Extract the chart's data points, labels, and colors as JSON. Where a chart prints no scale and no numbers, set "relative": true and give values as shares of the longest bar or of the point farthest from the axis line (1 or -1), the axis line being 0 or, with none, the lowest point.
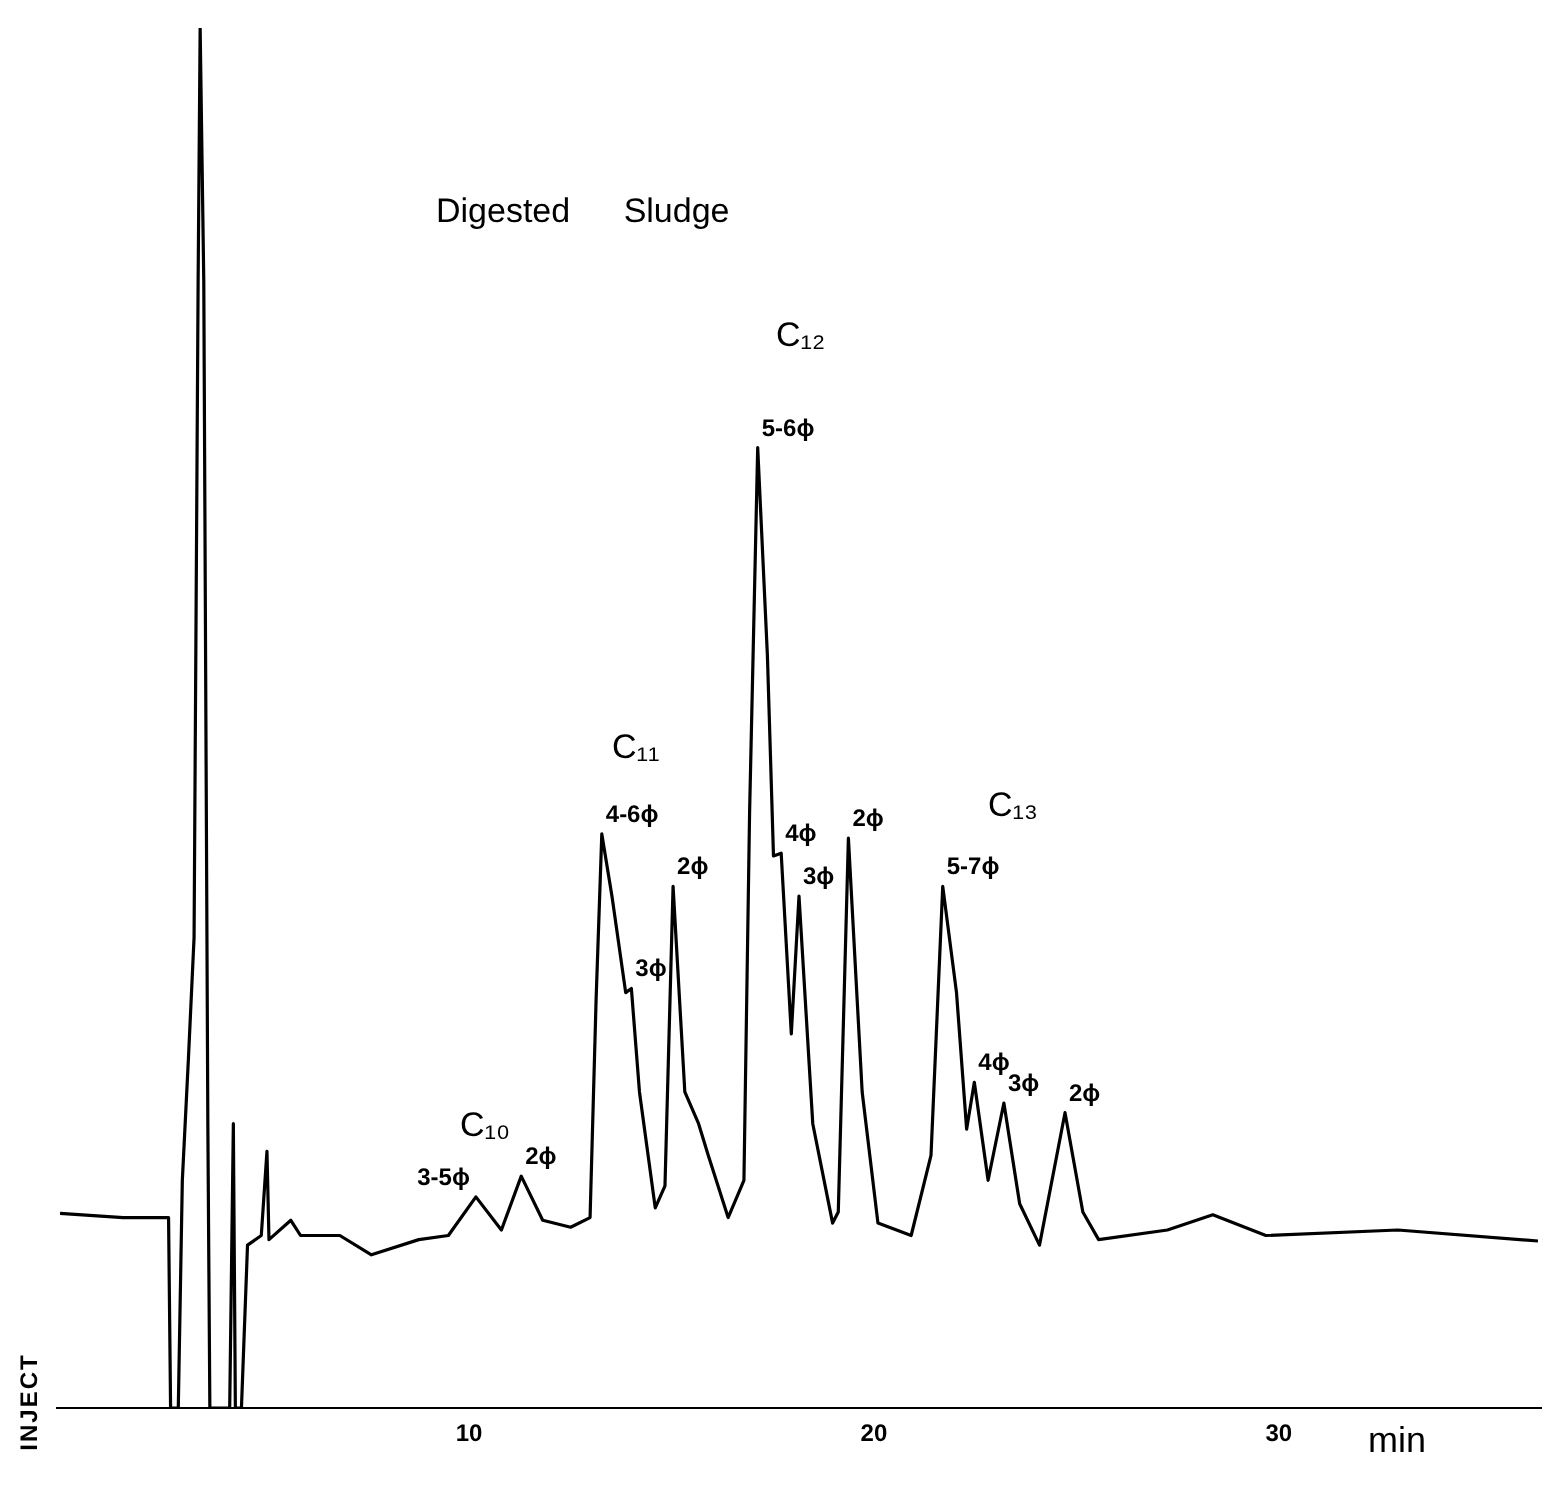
{
  "chart_data": {
    "type": "line",
    "title": "Digested Sludge",
    "xlabel": "min",
    "relative": true,
    "xlim": [
      -0.2,
      36.5
    ],
    "xticks": [
      10,
      20,
      30
    ],
    "x": [
      -0.1,
      1.46,
      2.58,
      2.63,
      2.82,
      2.92,
      3.07,
      3.21,
      3.31,
      3.36,
      3.45,
      3.55,
      3.6,
      4.09,
      4.18,
      4.23,
      4.38,
      4.53,
      4.87,
      5.01,
      5.06,
      5.6,
      5.84,
      6.81,
      7.59,
      8.76,
      9.49,
      10.17,
      10.8,
      11.29,
      11.82,
      12.51,
      12.99,
      13.14,
      13.28,
      13.53,
      13.87,
      14.01,
      14.21,
      14.6,
      14.84,
      15.04,
      15.33,
      15.67,
      15.91,
      16.4,
      16.79,
      16.93,
      17.13,
      17.37,
      17.52,
      17.71,
      17.96,
      18.15,
      18.49,
      18.98,
      19.12,
      19.37,
      19.71,
      20.1,
      20.92,
      21.41,
      21.7,
      22.04,
      22.29,
      22.48,
      22.82,
      23.21,
      23.6,
      24.09,
      24.72,
      25.16,
      25.55,
      27.25,
      28.37,
      29.68,
      32.94,
      36.4
    ],
    "series": [
      {
        "color": "#000000",
        "values": [
          0.141,
          0.138,
          0.138,
          0,
          0,
          0.165,
          0.253,
          0.341,
          0.816,
          1,
          0.816,
          0.206,
          0,
          0,
          0.206,
          0,
          0,
          0.118,
          0.125,
          0.186,
          0.122,
          0.136,
          0.125,
          0.125,
          0.111,
          0.122,
          0.125,
          0.153,
          0.129,
          0.168,
          0.136,
          0.131,
          0.138,
          0.297,
          0.416,
          0.371,
          0.301,
          0.304,
          0.229,
          0.145,
          0.161,
          0.378,
          0.229,
          0.206,
          0.183,
          0.138,
          0.165,
          0.432,
          0.696,
          0.545,
          0.4,
          0.402,
          0.271,
          0.371,
          0.206,
          0.134,
          0.142,
          0.413,
          0.229,
          0.134,
          0.125,
          0.183,
          0.378,
          0.301,
          0.202,
          0.236,
          0.165,
          0.221,
          0.148,
          0.118,
          0.214,
          0.142,
          0.122,
          0.129,
          0.14,
          0.125,
          0.129,
          0.121
        ]
      }
    ],
    "annotations": [
      "C₁₀",
      "C₁₁",
      "C₁₂",
      "C₁₃",
      {
        "text": "3-5ϕ",
        "x": 10.17,
        "y": 0.153
      },
      {
        "text": "2ϕ",
        "x": 11.29,
        "y": 0.168
      },
      {
        "text": "4-6ϕ",
        "x": 13.28,
        "y": 0.416
      },
      {
        "text": "3ϕ",
        "x": 14.01,
        "y": 0.304
      },
      {
        "text": "2ϕ",
        "x": 15.04,
        "y": 0.378
      },
      {
        "text": "5-6ϕ",
        "x": 17.13,
        "y": 0.696
      },
      {
        "text": "4ϕ",
        "x": 17.71,
        "y": 0.402
      },
      {
        "text": "3ϕ",
        "x": 18.15,
        "y": 0.371
      },
      {
        "text": "2ϕ",
        "x": 19.37,
        "y": 0.413
      },
      {
        "text": "5-7ϕ",
        "x": 21.7,
        "y": 0.378
      },
      {
        "text": "4ϕ",
        "x": 22.48,
        "y": 0.236
      },
      {
        "text": "3ϕ",
        "x": 23.21,
        "y": 0.221
      },
      {
        "text": "2ϕ",
        "x": 24.72,
        "y": 0.214
      },
      "INJECT"
    ]
  }
}
